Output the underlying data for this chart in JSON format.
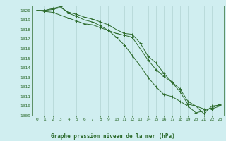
{
  "title": "Graphe pression niveau de la mer (hPa)",
  "background_color": "#d0eef0",
  "line_color": "#2d6b2d",
  "grid_color": "#aacccc",
  "xlim": [
    -0.5,
    23.5
  ],
  "ylim": [
    1009,
    1020.5
  ],
  "yticks": [
    1009,
    1010,
    1011,
    1012,
    1013,
    1014,
    1015,
    1016,
    1017,
    1018,
    1019,
    1020
  ],
  "xticks": [
    0,
    1,
    2,
    3,
    4,
    5,
    6,
    7,
    8,
    9,
    10,
    11,
    12,
    13,
    14,
    15,
    16,
    17,
    18,
    19,
    20,
    21,
    22,
    23
  ],
  "series": [
    [
      1020.0,
      1020.0,
      1020.1,
      1020.3,
      1019.8,
      1019.6,
      1019.3,
      1019.1,
      1018.8,
      1018.5,
      1018.0,
      1017.6,
      1017.5,
      1016.6,
      1015.2,
      1014.5,
      1013.4,
      1012.5,
      1011.5,
      1010.2,
      1010.0,
      1009.2,
      1010.0,
      1010.1
    ],
    [
      1020.0,
      1020.0,
      1020.2,
      1020.4,
      1019.7,
      1019.4,
      1019.0,
      1018.8,
      1018.4,
      1017.9,
      1017.2,
      1016.4,
      1015.3,
      1014.2,
      1013.0,
      1012.0,
      1011.2,
      1011.0,
      1010.5,
      1010.0,
      1009.3,
      1009.5,
      1009.8,
      1010.2
    ],
    [
      1020.0,
      1019.9,
      1019.8,
      1019.5,
      1019.2,
      1018.9,
      1018.6,
      1018.5,
      1018.2,
      1017.9,
      1017.6,
      1017.4,
      1017.2,
      1016.0,
      1014.8,
      1013.8,
      1013.1,
      1012.5,
      1011.8,
      1010.5,
      1010.0,
      1009.7,
      1009.7,
      1010.0
    ]
  ]
}
